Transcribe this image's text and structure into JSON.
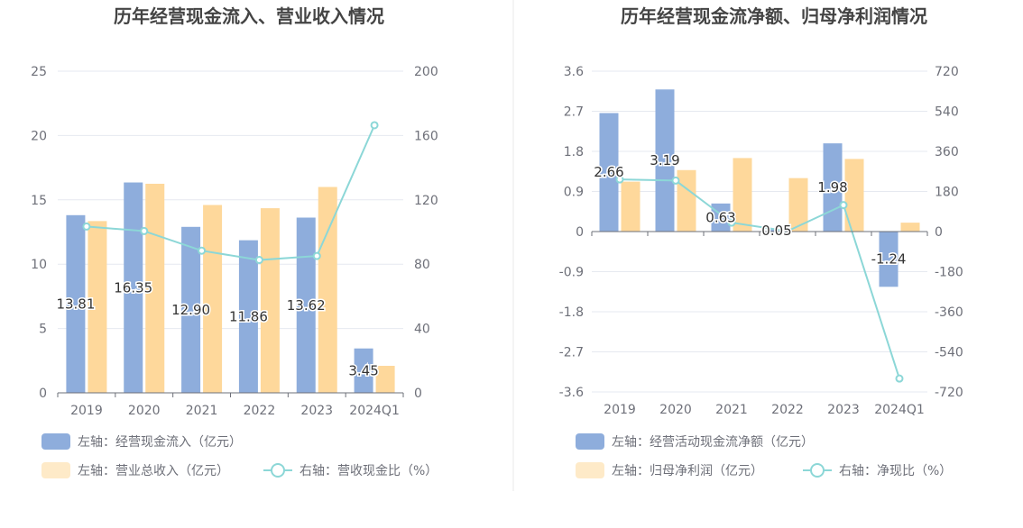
{
  "colors": {
    "bar_primary": "#8eaddc",
    "bar_secondary": "#fed89b",
    "line": "#8cd7d7",
    "axis_text": "#6e7079",
    "grid": "#e6e9f0",
    "title": "#444444",
    "label": "#333333",
    "divider": "#e8e8e8"
  },
  "chart_data": [
    {
      "type": "bar",
      "title": "历年经营现金流入、营业收入情况",
      "categories": [
        "2019",
        "2020",
        "2021",
        "2022",
        "2023",
        "2024Q1"
      ],
      "left_axis": {
        "ticks": [
          "0",
          "5",
          "10",
          "15",
          "20",
          "25"
        ],
        "ylim": [
          0,
          25
        ]
      },
      "right_axis": {
        "ticks": [
          "0",
          "40",
          "80",
          "120",
          "160",
          "200"
        ],
        "ylim": [
          0,
          200
        ]
      },
      "series": [
        {
          "name": "左轴：经营现金流入（亿元）",
          "type": "bar",
          "axis": "left",
          "color": "#8eaddc",
          "values": [
            13.81,
            16.35,
            12.9,
            11.86,
            13.62,
            3.45
          ],
          "labels": [
            "13.81",
            "16.35",
            "12.90",
            "11.86",
            "13.62",
            "3.45"
          ]
        },
        {
          "name": "左轴：营业总收入（亿元）",
          "type": "bar",
          "axis": "left",
          "color": "#fed89b",
          "values": [
            13.35,
            16.25,
            14.6,
            14.35,
            16.0,
            2.1
          ]
        },
        {
          "name": "右轴：营收现金比（%）",
          "type": "line",
          "axis": "right",
          "color": "#8cd7d7",
          "values": [
            103.4,
            100.6,
            88.4,
            82.6,
            85.1,
            166.4
          ]
        }
      ],
      "legend": {
        "placement": "bottom-left",
        "items": [
          "左轴：经营现金流入（亿元）",
          "左轴：营业总收入（亿元）",
          "右轴：营收现金比（%）"
        ]
      }
    },
    {
      "type": "bar",
      "title": "历年经营现金流净额、归母净利润情况",
      "categories": [
        "2019",
        "2020",
        "2021",
        "2022",
        "2023",
        "2024Q1"
      ],
      "left_axis": {
        "ticks": [
          "-3.6",
          "-2.7",
          "-1.8",
          "-0.9",
          "0",
          "0.9",
          "1.8",
          "2.7",
          "3.6"
        ],
        "ylim": [
          -3.6,
          3.6
        ]
      },
      "right_axis": {
        "ticks": [
          "-720",
          "-540",
          "-360",
          "-180",
          "0",
          "180",
          "360",
          "540",
          "720"
        ],
        "ylim": [
          -720,
          720
        ]
      },
      "series": [
        {
          "name": "左轴：经营活动现金流净额（亿元）",
          "type": "bar",
          "axis": "left",
          "color": "#8eaddc",
          "values": [
            2.66,
            3.19,
            0.63,
            0.05,
            1.98,
            -1.24
          ],
          "labels": [
            "2.66",
            "3.19",
            "0.63",
            "0.05",
            "1.98",
            "-1.24"
          ]
        },
        {
          "name": "左轴：归母净利润（亿元）",
          "type": "bar",
          "axis": "left",
          "color": "#fed89b",
          "values": [
            1.12,
            1.38,
            1.65,
            1.2,
            1.63,
            0.2
          ]
        },
        {
          "name": "右轴：净现比（%）",
          "type": "line",
          "axis": "right",
          "color": "#8cd7d7",
          "values": [
            234,
            229,
            40,
            2,
            119,
            -660
          ]
        }
      ],
      "legend": {
        "placement": "bottom-left",
        "items": [
          "左轴：经营活动现金流净额（亿元）",
          "左轴：归母净利润（亿元）",
          "右轴：净现比（%）"
        ]
      }
    }
  ]
}
